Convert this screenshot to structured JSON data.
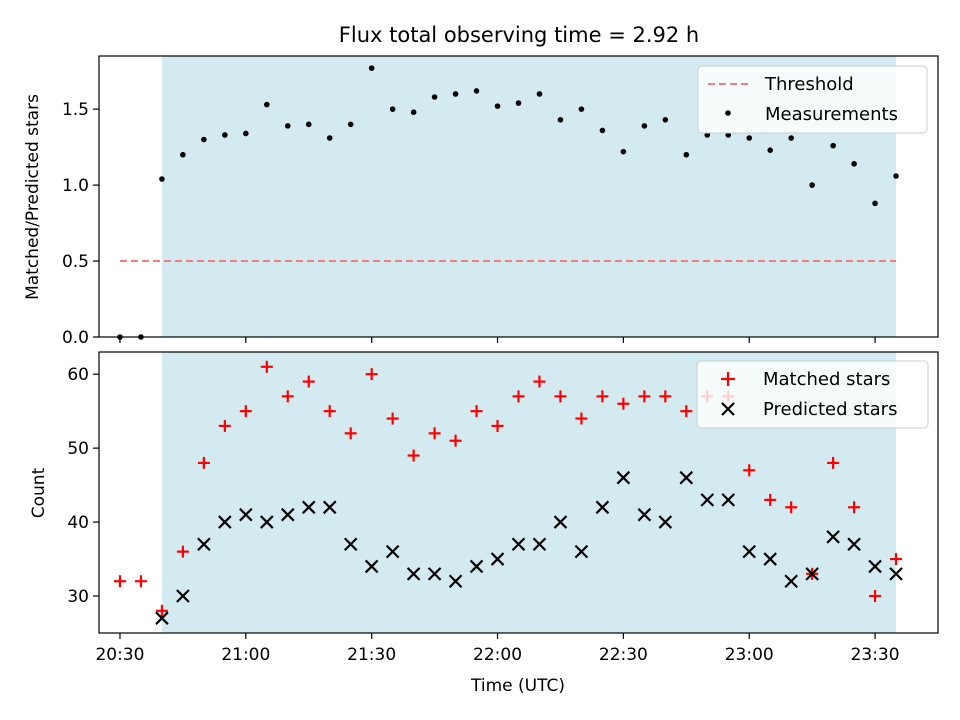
{
  "chart_data": [
    {
      "type": "scatter",
      "title": "Flux total observing time = 2.92 h",
      "xlabel": "",
      "ylabel": "Matched/Predicted stars",
      "xlim": [
        "20:25",
        "23:45"
      ],
      "ylim": [
        0,
        1.85
      ],
      "yticks": [
        "0.0",
        "0.5",
        "1.0",
        "1.5"
      ],
      "shaded_region": [
        "20:40",
        "23:35"
      ],
      "shaded_color": "#d3eaf0",
      "legend_position": "top-right",
      "grid": false,
      "series": [
        {
          "name": "Threshold",
          "style": "dashed-line",
          "color": "#f08080",
          "x": [
            "20:30",
            "23:35"
          ],
          "y": [
            0.5,
            0.5
          ]
        },
        {
          "name": "Measurements",
          "style": "dot",
          "color": "#000000",
          "x": [
            "20:30",
            "20:35",
            "20:40",
            "20:45",
            "20:50",
            "20:55",
            "21:00",
            "21:05",
            "21:10",
            "21:15",
            "21:20",
            "21:25",
            "21:30",
            "21:35",
            "21:40",
            "21:45",
            "21:50",
            "21:55",
            "22:00",
            "22:05",
            "22:10",
            "22:15",
            "22:20",
            "22:25",
            "22:30",
            "22:35",
            "22:40",
            "22:45",
            "22:50",
            "22:55",
            "23:00",
            "23:05",
            "23:10",
            "23:15",
            "23:20",
            "23:25",
            "23:30",
            "23:35"
          ],
          "y": [
            0.0,
            0.0,
            1.04,
            1.2,
            1.3,
            1.33,
            1.34,
            1.53,
            1.39,
            1.4,
            1.31,
            1.4,
            1.77,
            1.5,
            1.48,
            1.58,
            1.6,
            1.62,
            1.52,
            1.54,
            1.6,
            1.43,
            1.5,
            1.36,
            1.22,
            1.39,
            1.43,
            1.2,
            1.33,
            1.33,
            1.31,
            1.23,
            1.31,
            1.0,
            1.26,
            1.14,
            0.88,
            1.06
          ]
        }
      ]
    },
    {
      "type": "scatter",
      "title": "",
      "xlabel": "Time (UTC)",
      "ylabel": "Count",
      "xlim": [
        "20:25",
        "23:45"
      ],
      "ylim": [
        25,
        63
      ],
      "xticks": [
        "20:30",
        "21:00",
        "21:30",
        "22:00",
        "22:30",
        "23:00",
        "23:30"
      ],
      "yticks": [
        "30",
        "40",
        "50",
        "60"
      ],
      "shaded_region": [
        "20:40",
        "23:35"
      ],
      "shaded_color": "#d3eaf0",
      "legend_position": "top-right",
      "grid": false,
      "series": [
        {
          "name": "Matched stars",
          "style": "plus",
          "color": "#ff0000",
          "x": [
            "20:30",
            "20:35",
            "20:40",
            "20:45",
            "20:50",
            "20:55",
            "21:00",
            "21:05",
            "21:10",
            "21:15",
            "21:20",
            "21:25",
            "21:30",
            "21:35",
            "21:40",
            "21:45",
            "21:50",
            "21:55",
            "22:00",
            "22:05",
            "22:10",
            "22:15",
            "22:20",
            "22:25",
            "22:30",
            "22:35",
            "22:40",
            "22:45",
            "22:50",
            "22:55",
            "23:00",
            "23:05",
            "23:10",
            "23:15",
            "23:20",
            "23:25",
            "23:30",
            "23:35"
          ],
          "y": [
            32,
            32,
            28,
            36,
            48,
            53,
            55,
            61,
            57,
            59,
            55,
            52,
            60,
            54,
            49,
            52,
            51,
            55,
            53,
            57,
            59,
            57,
            54,
            57,
            56,
            57,
            57,
            55,
            57,
            57,
            47,
            43,
            42,
            33,
            48,
            42,
            30,
            35
          ]
        },
        {
          "name": "Predicted stars",
          "style": "x",
          "color": "#000000",
          "x": [
            "20:40",
            "20:45",
            "20:50",
            "20:55",
            "21:00",
            "21:05",
            "21:10",
            "21:15",
            "21:20",
            "21:25",
            "21:30",
            "21:35",
            "21:40",
            "21:45",
            "21:50",
            "21:55",
            "22:00",
            "22:05",
            "22:10",
            "22:15",
            "22:20",
            "22:25",
            "22:30",
            "22:35",
            "22:40",
            "22:45",
            "22:50",
            "22:55",
            "23:00",
            "23:05",
            "23:10",
            "23:15",
            "23:20",
            "23:25",
            "23:30",
            "23:35"
          ],
          "y": [
            27,
            30,
            37,
            40,
            41,
            40,
            41,
            42,
            42,
            37,
            34,
            36,
            33,
            33,
            32,
            34,
            35,
            37,
            37,
            40,
            36,
            42,
            46,
            41,
            40,
            46,
            43,
            43,
            36,
            35,
            32,
            33,
            38,
            37,
            34,
            33
          ]
        }
      ]
    }
  ]
}
